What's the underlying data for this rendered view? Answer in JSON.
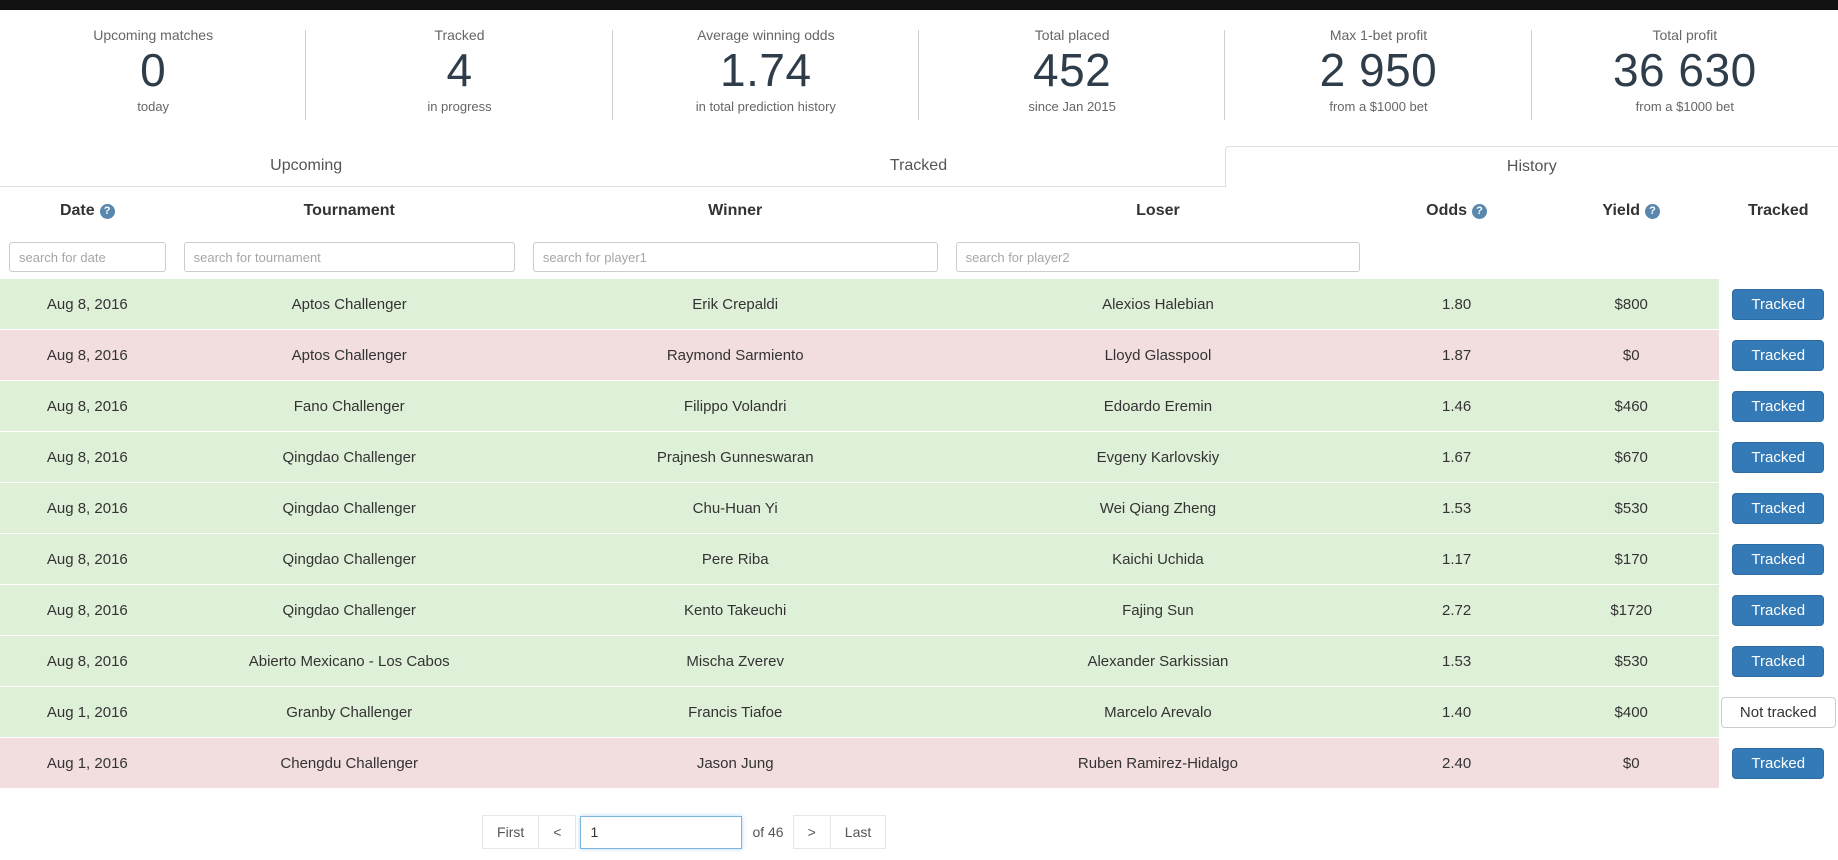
{
  "colors": {
    "accent_blue": "#337ab7",
    "win_row_bg": "#dff0d8",
    "loss_row_bg": "#f2dede",
    "top_bar": "#121212"
  },
  "stats": [
    {
      "label": "Upcoming matches",
      "value": "0",
      "sublabel": "today"
    },
    {
      "label": "Tracked",
      "value": "4",
      "sublabel": "in progress"
    },
    {
      "label": "Average winning odds",
      "value": "1.74",
      "sublabel": "in total prediction history"
    },
    {
      "label": "Total placed",
      "value": "452",
      "sublabel": "since Jan 2015"
    },
    {
      "label": "Max 1-bet profit",
      "value": "2 950",
      "sublabel": "from a $1000 bet"
    },
    {
      "label": "Total profit",
      "value": "36 630",
      "sublabel": "from a $1000 bet"
    }
  ],
  "tabs": [
    {
      "label": "Upcoming",
      "active": false
    },
    {
      "label": "Tracked",
      "active": false
    },
    {
      "label": "History",
      "active": true
    }
  ],
  "table": {
    "help_glyph": "?",
    "headers": {
      "date": "Date",
      "tournament": "Tournament",
      "winner": "Winner",
      "loser": "Loser",
      "odds": "Odds",
      "yield": "Yield",
      "tracked": "Tracked"
    },
    "search": {
      "date": "search for date",
      "tournament": "search for tournament",
      "player1": "search for player1",
      "player2": "search for player2"
    },
    "rows": [
      {
        "date": "Aug 8, 2016",
        "tournament": "Aptos Challenger",
        "winner": "Erik Crepaldi",
        "loser": "Alexios Halebian",
        "odds": "1.80",
        "yield": "$800",
        "result": "win",
        "tracked": true,
        "tracked_label": "Tracked"
      },
      {
        "date": "Aug 8, 2016",
        "tournament": "Aptos Challenger",
        "winner": "Raymond Sarmiento",
        "loser": "Lloyd Glasspool",
        "odds": "1.87",
        "yield": "$0",
        "result": "loss",
        "tracked": true,
        "tracked_label": "Tracked"
      },
      {
        "date": "Aug 8, 2016",
        "tournament": "Fano Challenger",
        "winner": "Filippo Volandri",
        "loser": "Edoardo Eremin",
        "odds": "1.46",
        "yield": "$460",
        "result": "win",
        "tracked": true,
        "tracked_label": "Tracked"
      },
      {
        "date": "Aug 8, 2016",
        "tournament": "Qingdao Challenger",
        "winner": "Prajnesh Gunneswaran",
        "loser": "Evgeny Karlovskiy",
        "odds": "1.67",
        "yield": "$670",
        "result": "win",
        "tracked": true,
        "tracked_label": "Tracked"
      },
      {
        "date": "Aug 8, 2016",
        "tournament": "Qingdao Challenger",
        "winner": "Chu-Huan Yi",
        "loser": "Wei Qiang Zheng",
        "odds": "1.53",
        "yield": "$530",
        "result": "win",
        "tracked": true,
        "tracked_label": "Tracked"
      },
      {
        "date": "Aug 8, 2016",
        "tournament": "Qingdao Challenger",
        "winner": "Pere Riba",
        "loser": "Kaichi Uchida",
        "odds": "1.17",
        "yield": "$170",
        "result": "win",
        "tracked": true,
        "tracked_label": "Tracked"
      },
      {
        "date": "Aug 8, 2016",
        "tournament": "Qingdao Challenger",
        "winner": "Kento Takeuchi",
        "loser": "Fajing Sun",
        "odds": "2.72",
        "yield": "$1720",
        "result": "win",
        "tracked": true,
        "tracked_label": "Tracked"
      },
      {
        "date": "Aug 8, 2016",
        "tournament": "Abierto Mexicano - Los Cabos",
        "winner": "Mischa Zverev",
        "loser": "Alexander Sarkissian",
        "odds": "1.53",
        "yield": "$530",
        "result": "win",
        "tracked": true,
        "tracked_label": "Tracked"
      },
      {
        "date": "Aug 1, 2016",
        "tournament": "Granby Challenger",
        "winner": "Francis Tiafoe",
        "loser": "Marcelo Arevalo",
        "odds": "1.40",
        "yield": "$400",
        "result": "win",
        "tracked": false,
        "tracked_label": "Not tracked"
      },
      {
        "date": "Aug 1, 2016",
        "tournament": "Chengdu Challenger",
        "winner": "Jason Jung",
        "loser": "Ruben Ramirez-Hidalgo",
        "odds": "2.40",
        "yield": "$0",
        "result": "loss",
        "tracked": true,
        "tracked_label": "Tracked"
      }
    ]
  },
  "pagination": {
    "first_label": "First",
    "prev_label": "<",
    "page_value": "1",
    "total_label": "of 46",
    "next_label": ">",
    "last_label": "Last"
  }
}
